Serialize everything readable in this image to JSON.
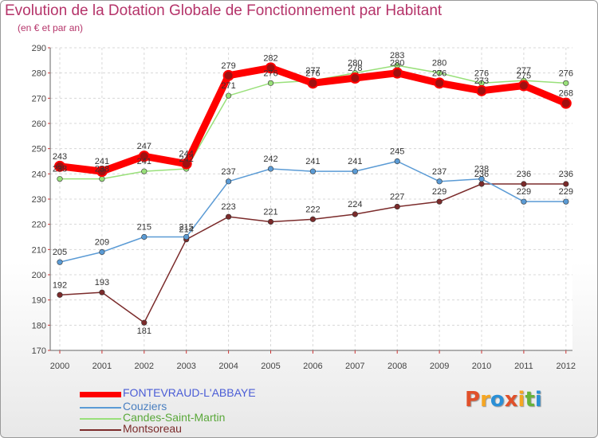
{
  "header": {
    "title": "Evolution de la Dotation Globale de Fonctionnement par Habitant",
    "subtitle": "(en € et par an)"
  },
  "logo": {
    "text": "Proxiti",
    "letters": [
      "P",
      "r",
      "o",
      "x",
      "i",
      "t",
      "i"
    ],
    "colors": [
      "#e0502a",
      "#f5a623",
      "#2a8fd6",
      "#e0502a",
      "#f5a623",
      "#66b33a",
      "#2a8fd6"
    ]
  },
  "chart_data": {
    "type": "line",
    "title": "Evolution de la Dotation Globale de Fonctionnement par Habitant",
    "ylabel": "(en € et par an)",
    "xlabel": "",
    "categories": [
      "2000",
      "2001",
      "2002",
      "2003",
      "2004",
      "2005",
      "2006",
      "2007",
      "2008",
      "2009",
      "2010",
      "2011",
      "2012"
    ],
    "ylim": [
      170,
      290
    ],
    "yticks": [
      "170",
      "180",
      "190",
      "200",
      "210",
      "220",
      "230",
      "240",
      "250",
      "260",
      "270",
      "280",
      "290"
    ],
    "grid": true,
    "legend": "bottom-left",
    "series": [
      {
        "name": "FONTEVRAUD-L'ABBAYE",
        "color": "#ff0000",
        "labelColor": "#4a5cd6",
        "values": [
          243,
          241,
          247,
          244,
          279,
          282,
          276,
          278,
          280,
          276,
          273,
          275,
          268
        ],
        "labels": [
          "243",
          "241",
          "247",
          "244",
          "279",
          "282",
          "276",
          "278",
          "280",
          "276",
          "273",
          "275",
          "268"
        ]
      },
      {
        "name": "Couziers",
        "color": "#5b9bd5",
        "labelColor": "#4a7fc0",
        "values": [
          205,
          209,
          215,
          215,
          237,
          242,
          241,
          241,
          245,
          237,
          238,
          229,
          229
        ],
        "labels": [
          "205",
          "209",
          "215",
          "215",
          "237",
          "242",
          "241",
          "241",
          "245",
          "237",
          "238",
          "229",
          "229"
        ]
      },
      {
        "name": "Candes-Saint-Martin",
        "color": "#99e07a",
        "labelColor": "#5aa83a",
        "values": [
          238,
          238,
          241,
          242,
          271,
          276,
          277,
          280,
          283,
          280,
          276,
          277,
          276
        ],
        "labels": [
          "238",
          "238",
          "241",
          "242",
          "271",
          "276",
          "277",
          "280",
          "283",
          "280",
          "276",
          "277",
          "276"
        ]
      },
      {
        "name": "Montsoreau",
        "color": "#7b2b2b",
        "labelColor": "#7b2b2b",
        "values": [
          192,
          193,
          181,
          214,
          223,
          221,
          222,
          224,
          227,
          229,
          236,
          236,
          236
        ],
        "labels": [
          "192",
          "193",
          "181",
          "214",
          "223",
          "221",
          "222",
          "224",
          "227",
          "229",
          "236",
          "236",
          "236"
        ]
      }
    ]
  }
}
